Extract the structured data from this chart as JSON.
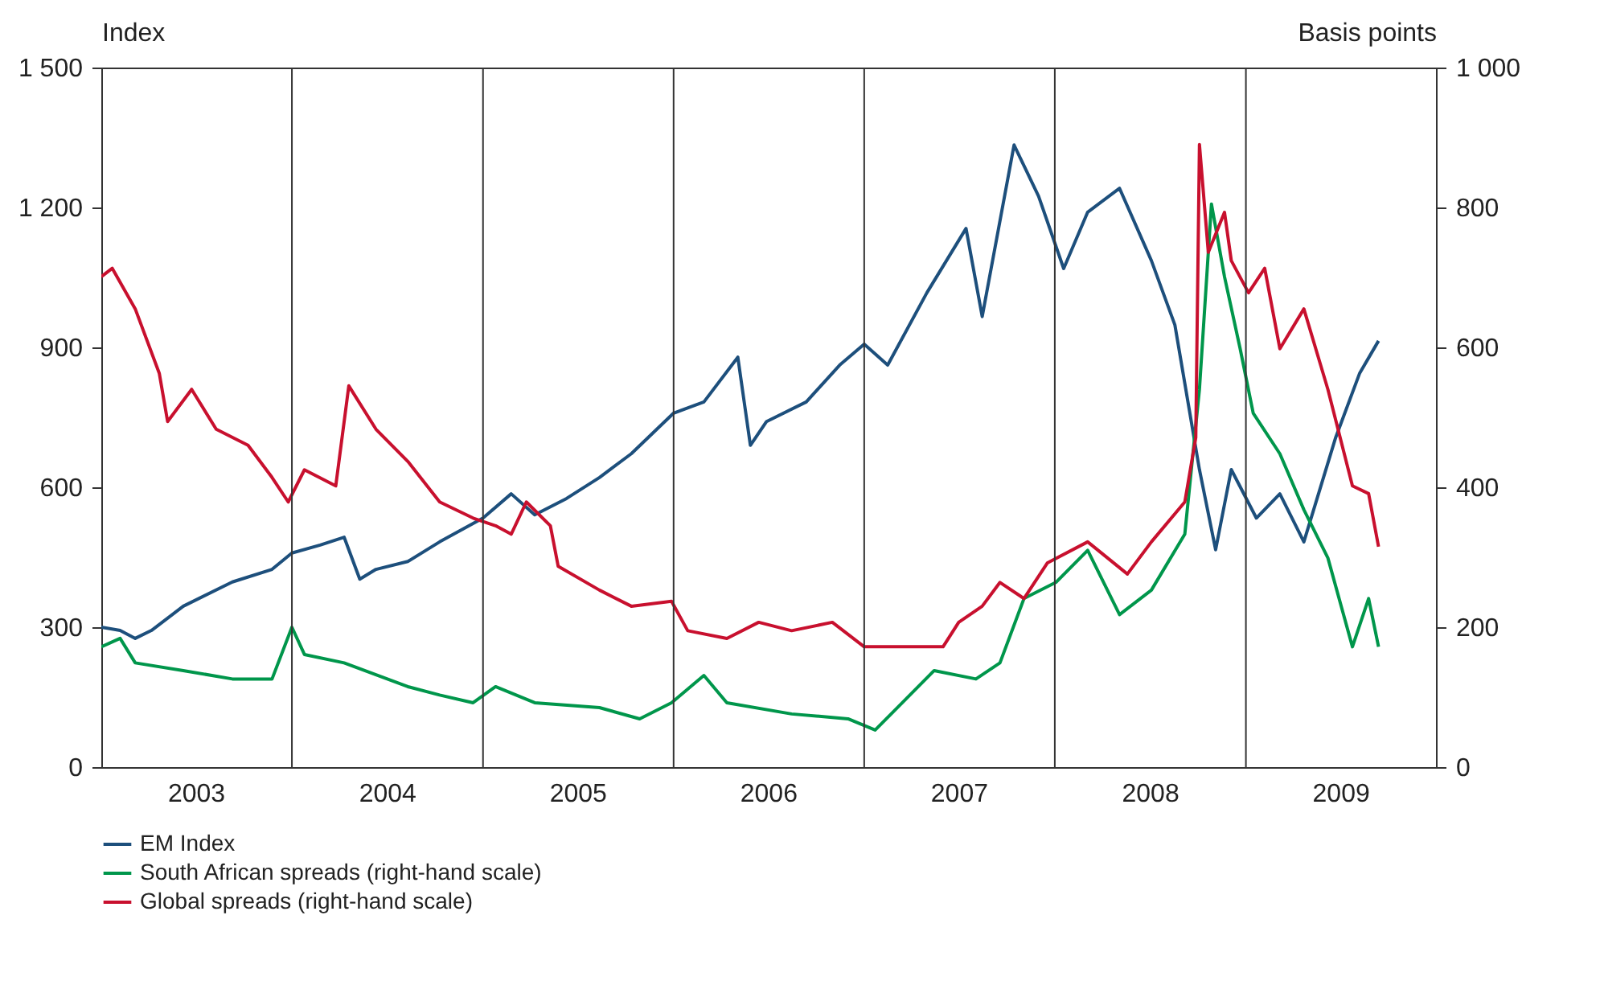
{
  "chart_data": {
    "type": "line",
    "ylabel": "Index",
    "y2label": "Basis points",
    "xlim": [
      "2003-01-01",
      "2009-12-31"
    ],
    "xticks": [
      {
        "value": "2003-07-01",
        "label": "2003"
      },
      {
        "value": "2004-07-01",
        "label": "2004"
      },
      {
        "value": "2005-07-01",
        "label": "2005"
      },
      {
        "value": "2006-07-01",
        "label": "2006"
      },
      {
        "value": "2007-07-01",
        "label": "2007"
      },
      {
        "value": "2008-07-01",
        "label": "2008"
      },
      {
        "value": "2009-07-01",
        "label": "2009"
      }
    ],
    "ylim": [
      0,
      1500
    ],
    "yticks": [
      0,
      300,
      600,
      900,
      {
        "value": 1200,
        "label": "1 200"
      },
      {
        "value": 1500,
        "label": "1 500"
      }
    ],
    "y2lim": [
      0,
      1000
    ],
    "y2ticks": [
      0,
      200,
      400,
      600,
      800,
      {
        "value": 1000,
        "label": "1 000"
      }
    ],
    "grid": false,
    "legend": "bottom",
    "ref_lines": [
      {
        "axis": "x",
        "value": "2004-01-01",
        "color": "#333333"
      },
      {
        "axis": "x",
        "value": "2005-01-01",
        "color": "#333333"
      },
      {
        "axis": "x",
        "value": "2006-01-01",
        "color": "#333333"
      },
      {
        "axis": "x",
        "value": "2007-01-01",
        "color": "#333333"
      },
      {
        "axis": "x",
        "value": "2008-01-01",
        "color": "#333333"
      },
      {
        "axis": "x",
        "value": "2009-01-01",
        "color": "#333333"
      }
    ],
    "series": [
      {
        "name": "EM Index",
        "color": "#1d4f7c",
        "x": [
          "2003-01-01",
          "2003-02-06",
          "2003-03-07",
          "2003-04-07",
          "2003-06-07",
          "2003-09-09",
          "2003-11-24",
          "2004-01-01",
          "2004-02-24",
          "2004-04-10",
          "2004-05-10",
          "2004-06-10",
          "2004-08-10",
          "2004-10-10",
          "2005-01-01",
          "2005-02-24",
          "2005-04-10",
          "2005-06-10",
          "2005-08-12",
          "2005-10-12",
          "2006-01-01",
          "2006-02-28",
          "2006-05-04",
          "2006-05-28",
          "2006-06-28",
          "2006-09-12",
          "2006-11-15",
          "2007-01-01",
          "2007-02-15",
          "2007-05-01",
          "2007-07-15",
          "2007-08-15",
          "2007-10-15",
          "2007-12-01",
          "2008-01-18",
          "2008-03-04",
          "2008-05-04",
          "2008-07-04",
          "2008-08-18",
          "2008-10-04",
          "2008-11-04",
          "2008-12-04",
          "2009-01-21",
          "2009-03-07",
          "2009-04-22",
          "2009-06-22",
          "2009-08-07",
          "2009-09-12"
        ],
        "values": [
          300,
          293,
          276,
          293,
          345,
          397,
          424,
          459,
          476,
          493,
          403,
          424,
          441,
          483,
          534,
          586,
          541,
          576,
          621,
          672,
          759,
          783,
          879,
          690,
          741,
          783,
          862,
          907,
          862,
          1017,
          1155,
          966,
          1334,
          1224,
          1069,
          1190,
          1241,
          1086,
          948,
          638,
          466,
          638,
          534,
          586,
          483,
          707,
          845,
          914
        ]
      },
      {
        "name": "South African spreads (right-hand scale)",
        "color": "#00964b",
        "axis": "y2",
        "x": [
          "2003-01-01",
          "2003-02-06",
          "2003-03-07",
          "2003-06-07",
          "2003-09-09",
          "2003-11-24",
          "2004-01-01",
          "2004-01-25",
          "2004-04-10",
          "2004-08-10",
          "2004-10-10",
          "2004-12-13",
          "2005-01-25",
          "2005-04-10",
          "2005-08-12",
          "2005-10-28",
          "2005-12-28",
          "2006-02-28",
          "2006-04-13",
          "2006-08-15",
          "2006-12-01",
          "2007-01-22",
          "2007-03-15",
          "2007-05-15",
          "2007-08-03",
          "2007-09-18",
          "2007-11-03",
          "2008-01-03",
          "2008-03-04",
          "2008-05-04",
          "2008-07-04",
          "2008-09-06",
          "2008-10-04",
          "2008-10-27",
          "2008-11-21",
          "2008-12-21",
          "2009-01-15",
          "2009-03-07",
          "2009-04-22",
          "2009-06-07",
          "2009-07-24",
          "2009-08-24",
          "2009-09-12"
        ],
        "values": [
          172,
          184,
          149,
          138,
          126,
          126,
          200,
          161,
          149,
          115,
          103,
          92,
          115,
          92,
          85,
          69,
          92,
          131,
          92,
          76,
          69,
          53,
          92,
          138,
          126,
          149,
          241,
          264,
          310,
          218,
          253,
          333,
          540,
          805,
          701,
          598,
          506,
          448,
          368,
          299,
          172,
          241,
          172
        ]
      },
      {
        "name": "Global spreads (right-hand scale)",
        "color": "#c8102e",
        "axis": "y2",
        "x": [
          "2003-01-01",
          "2003-01-22",
          "2003-03-07",
          "2003-04-22",
          "2003-05-08",
          "2003-06-23",
          "2003-08-09",
          "2003-10-09",
          "2003-11-24",
          "2003-12-25",
          "2004-01-25",
          "2004-03-25",
          "2004-04-19",
          "2004-06-10",
          "2004-08-10",
          "2004-10-10",
          "2004-12-13",
          "2005-01-25",
          "2005-02-24",
          "2005-03-25",
          "2005-05-10",
          "2005-05-25",
          "2005-08-12",
          "2005-10-12",
          "2005-12-28",
          "2006-01-28",
          "2006-04-13",
          "2006-06-13",
          "2006-08-15",
          "2006-11-01",
          "2007-01-01",
          "2007-03-15",
          "2007-06-01",
          "2007-07-01",
          "2007-08-15",
          "2007-09-18",
          "2007-11-03",
          "2007-12-18",
          "2008-03-04",
          "2008-05-19",
          "2008-07-04",
          "2008-09-06",
          "2008-09-27",
          "2008-10-04",
          "2008-10-21",
          "2008-11-21",
          "2008-12-04",
          "2009-01-06",
          "2009-02-06",
          "2009-03-07",
          "2009-04-22",
          "2009-06-07",
          "2009-07-24",
          "2009-08-24",
          "2009-09-12"
        ],
        "values": [
          701,
          713,
          655,
          563,
          494,
          540,
          483,
          460,
          414,
          379,
          425,
          402,
          545,
          483,
          437,
          379,
          356,
          345,
          333,
          379,
          345,
          287,
          253,
          230,
          237,
          195,
          184,
          207,
          195,
          207,
          172,
          172,
          172,
          207,
          230,
          264,
          241,
          292,
          322,
          276,
          322,
          379,
          471,
          890,
          736,
          793,
          724,
          678,
          713,
          598,
          655,
          540,
          402,
          391,
          315
        ]
      }
    ]
  }
}
